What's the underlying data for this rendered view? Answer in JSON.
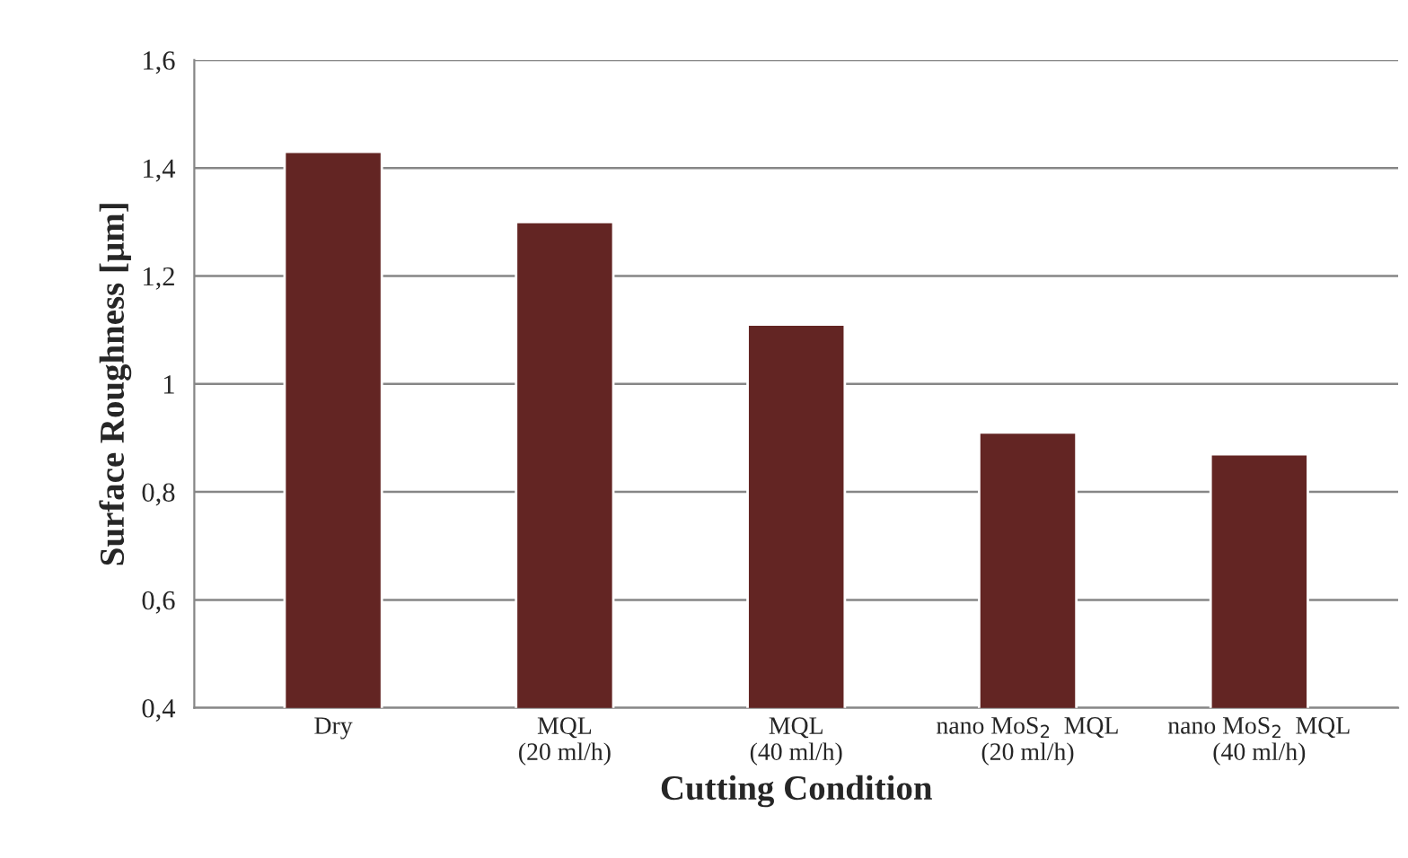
{
  "chart_data": {
    "type": "bar",
    "xlabel": "Cutting Condition",
    "ylabel": "Surface Roughness [µm]",
    "categories": [
      "Dry",
      "MQL\n(20 ml/h)",
      "MQL\n(40 ml/h)",
      "nano MoS$_{2}$  MQL\n(20 ml/h)",
      "nano MoS$_{2}$  MQL\n(40 ml/h)"
    ],
    "values": [
      1.43,
      1.3,
      1.11,
      0.91,
      0.87
    ],
    "color": "#632523",
    "ylim": [
      0.4,
      1.6
    ],
    "yticks": [
      {
        "value": 0.4,
        "label": "0,4"
      },
      {
        "value": 0.6,
        "label": "0,6"
      },
      {
        "value": 0.8,
        "label": "0,8"
      },
      1,
      {
        "value": 1.2,
        "label": "1,2"
      },
      {
        "value": 1.4,
        "label": "1,4"
      },
      {
        "value": 1.6,
        "label": "1,6"
      }
    ],
    "grid": "y"
  }
}
